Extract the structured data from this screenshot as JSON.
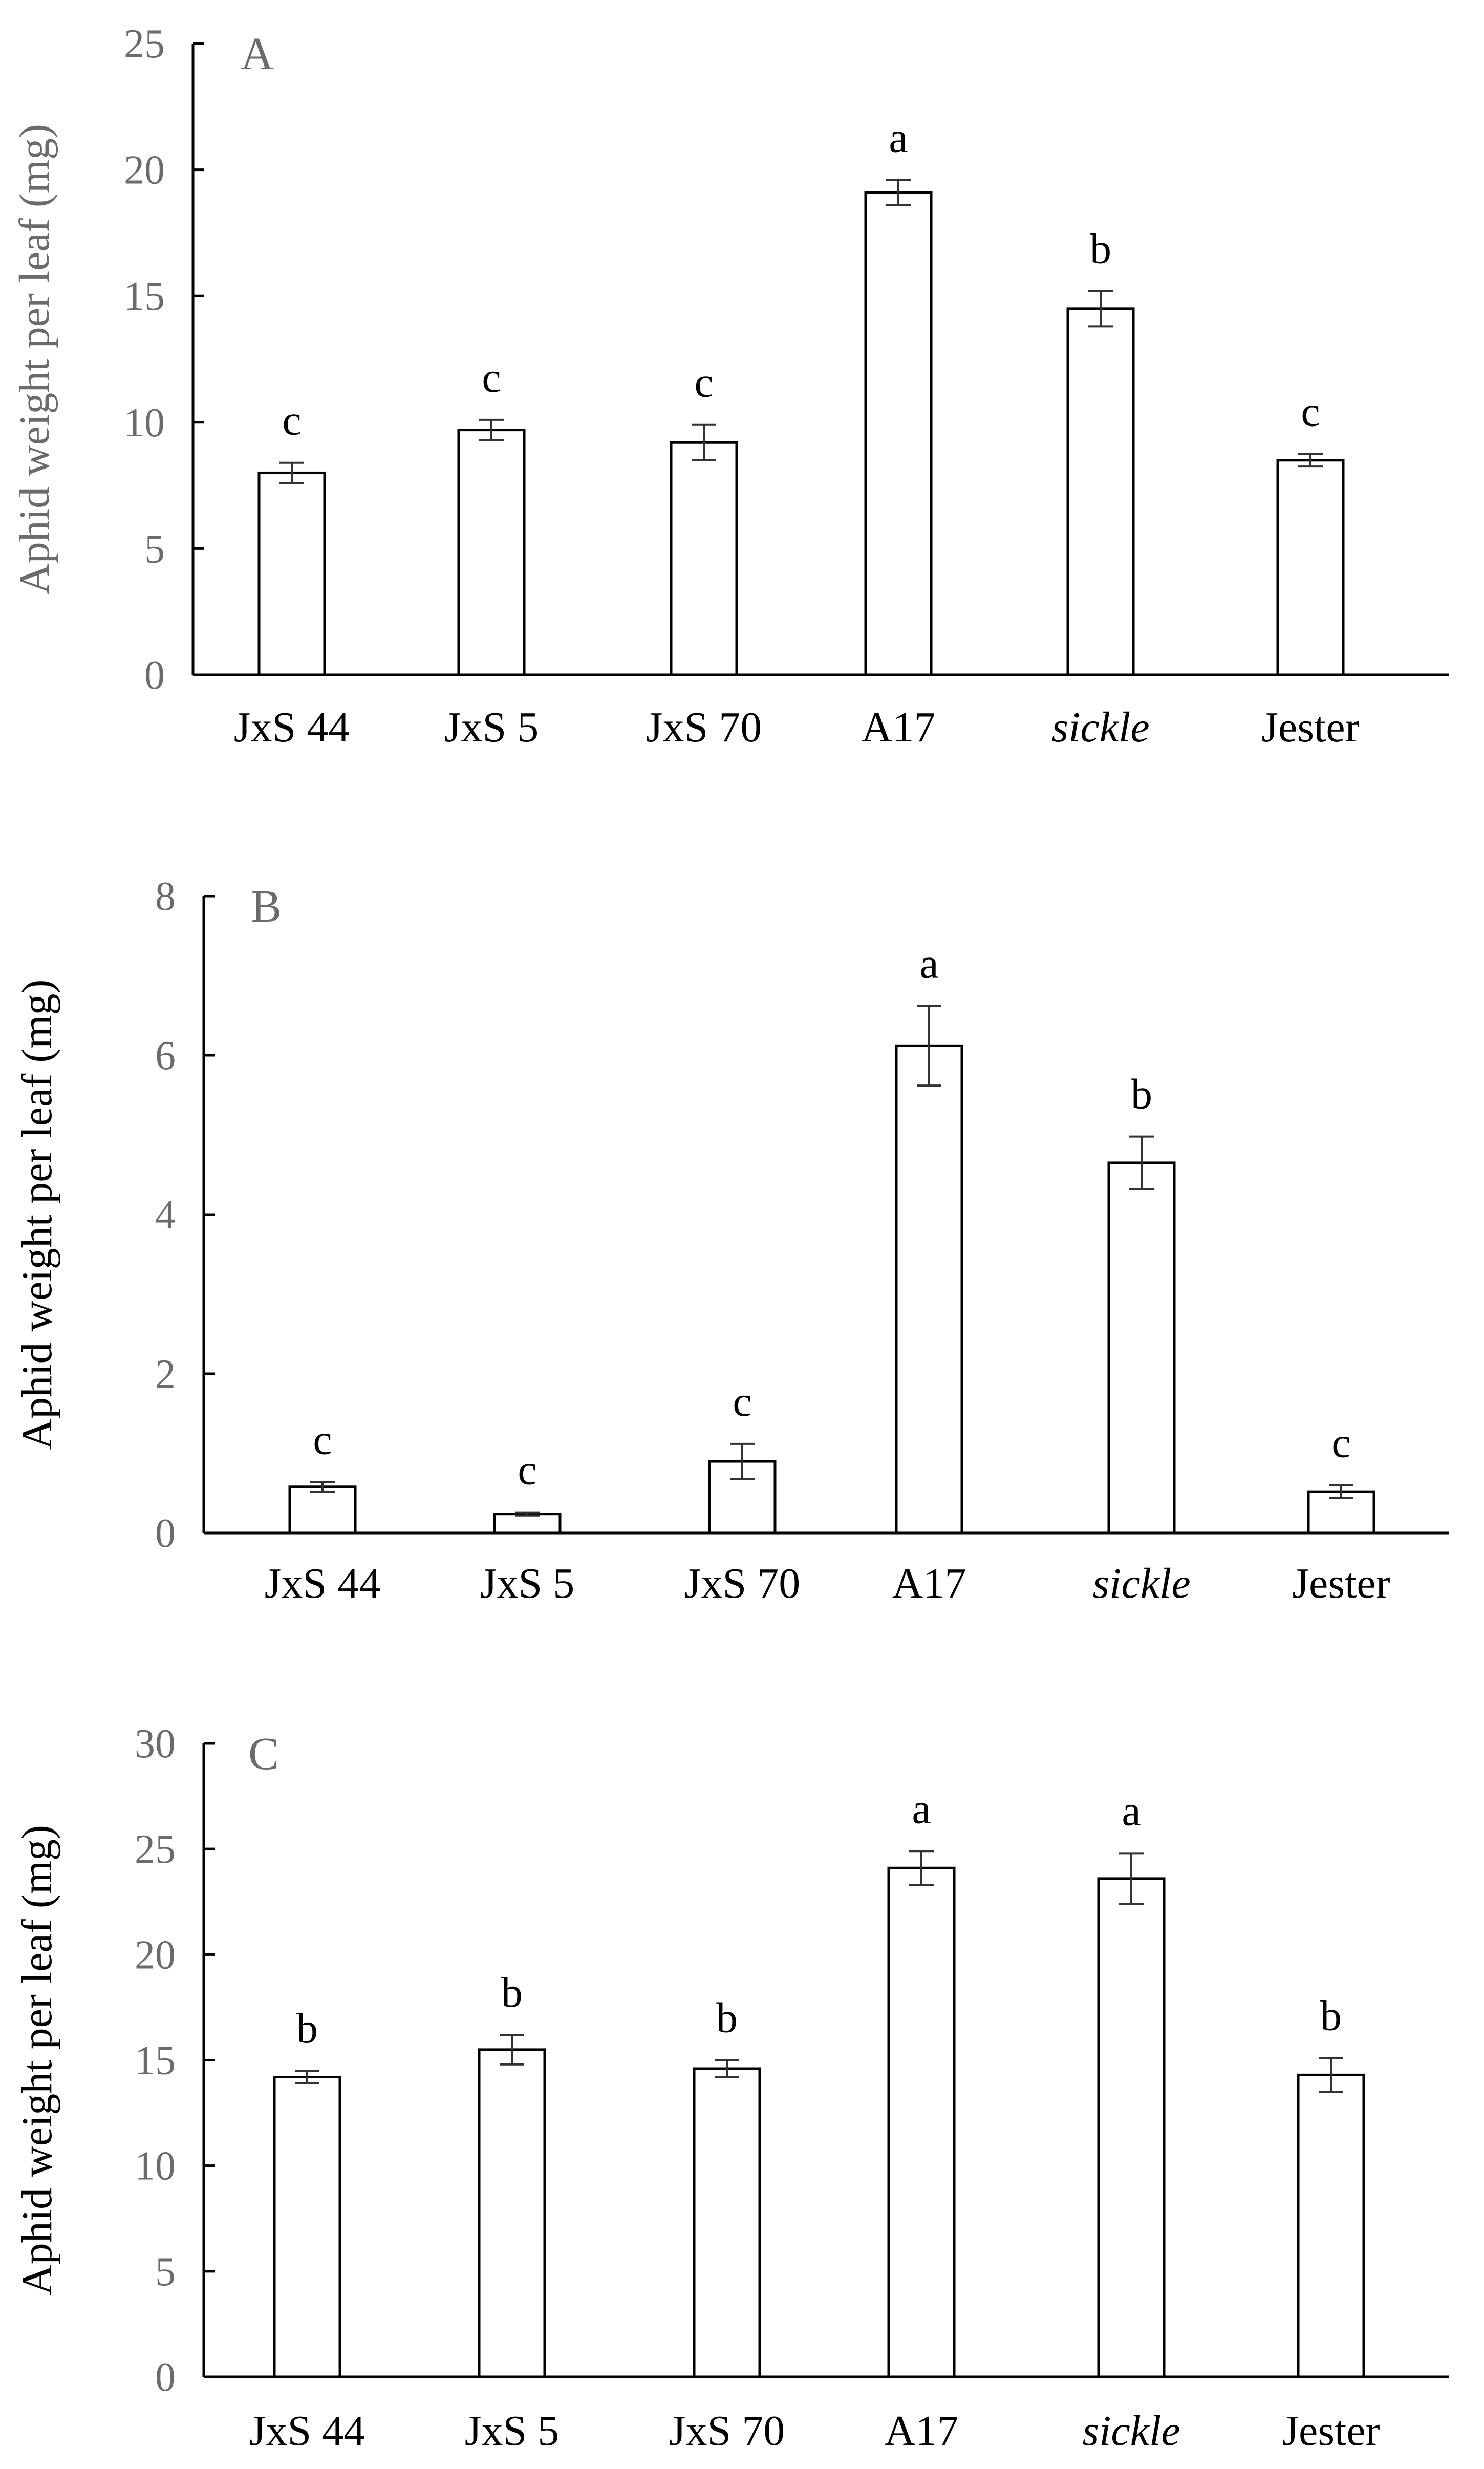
{
  "chart_data": [
    {
      "type": "bar",
      "panel": "A",
      "ylabel": "Aphid weight per leaf (mg)",
      "ylim": [
        0,
        25
      ],
      "yticks": [
        0,
        5,
        10,
        15,
        20,
        25
      ],
      "categories": [
        "JxS 44",
        "JxS 5",
        "JxS 70",
        "A17",
        "sickle",
        "Jester"
      ],
      "italic_categories": [
        "sickle"
      ],
      "values": [
        8.0,
        9.7,
        9.2,
        19.1,
        14.5,
        8.5
      ],
      "errors": [
        0.4,
        0.4,
        0.7,
        0.5,
        0.7,
        0.25
      ],
      "significance": [
        "c",
        "c",
        "c",
        "a",
        "b",
        "c"
      ]
    },
    {
      "type": "bar",
      "panel": "B",
      "ylabel": "Aphid weight per leaf (mg)",
      "ylim": [
        0,
        8
      ],
      "yticks": [
        0,
        2,
        4,
        6,
        8
      ],
      "categories": [
        "JxS 44",
        "JxS 5",
        "JxS 70",
        "A17",
        "sickle",
        "Jester"
      ],
      "italic_categories": [
        "sickle"
      ],
      "values": [
        0.58,
        0.24,
        0.9,
        6.12,
        4.65,
        0.52
      ],
      "errors": [
        0.06,
        0.02,
        0.22,
        0.5,
        0.33,
        0.08
      ],
      "significance": [
        "c",
        "c",
        "c",
        "a",
        "b",
        "c"
      ]
    },
    {
      "type": "bar",
      "panel": "C",
      "ylabel": "Aphid weight per leaf (mg)",
      "ylim": [
        0,
        30
      ],
      "yticks": [
        0,
        5,
        10,
        15,
        20,
        25,
        30
      ],
      "categories": [
        "JxS 44",
        "JxS 5",
        "JxS 70",
        "A17",
        "sickle",
        "Jester"
      ],
      "italic_categories": [
        "sickle"
      ],
      "values": [
        14.2,
        15.5,
        14.6,
        24.1,
        23.6,
        14.3
      ],
      "errors": [
        0.3,
        0.7,
        0.4,
        0.8,
        1.2,
        0.8
      ],
      "significance": [
        "b",
        "b",
        "b",
        "a",
        "a",
        "b"
      ]
    }
  ]
}
